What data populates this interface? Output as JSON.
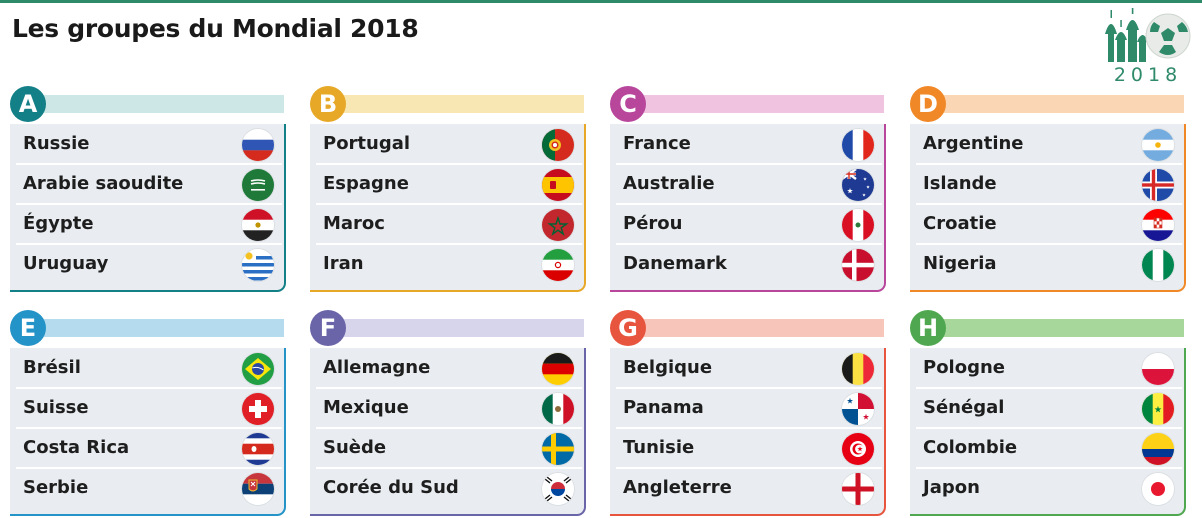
{
  "page": {
    "title": "Les groupes du Mondial 2018"
  },
  "logo": {
    "year": "2018",
    "icon": "world-cup-russia-logo",
    "color": "#2f8a6a"
  },
  "groups": [
    {
      "letter": "A",
      "color": "#137f86",
      "bar_color": "#cde6e6",
      "teams": [
        {
          "name": "Russie",
          "flag": "russia"
        },
        {
          "name": "Arabie saoudite",
          "flag": "saudi-arabia"
        },
        {
          "name": "Égypte",
          "flag": "egypt"
        },
        {
          "name": "Uruguay",
          "flag": "uruguay"
        }
      ]
    },
    {
      "letter": "B",
      "color": "#e8a827",
      "bar_color": "#f8e7b3",
      "teams": [
        {
          "name": "Portugal",
          "flag": "portugal"
        },
        {
          "name": "Espagne",
          "flag": "spain"
        },
        {
          "name": "Maroc",
          "flag": "morocco"
        },
        {
          "name": "Iran",
          "flag": "iran"
        }
      ]
    },
    {
      "letter": "C",
      "color": "#b8479c",
      "bar_color": "#f0c4e1",
      "teams": [
        {
          "name": "France",
          "flag": "france"
        },
        {
          "name": "Australie",
          "flag": "australia"
        },
        {
          "name": "Pérou",
          "flag": "peru"
        },
        {
          "name": "Danemark",
          "flag": "denmark"
        }
      ]
    },
    {
      "letter": "D",
      "color": "#f08828",
      "bar_color": "#fad6b4",
      "teams": [
        {
          "name": "Argentine",
          "flag": "argentina"
        },
        {
          "name": "Islande",
          "flag": "iceland"
        },
        {
          "name": "Croatie",
          "flag": "croatia"
        },
        {
          "name": "Nigeria",
          "flag": "nigeria"
        }
      ]
    },
    {
      "letter": "E",
      "color": "#2493c7",
      "bar_color": "#b5dcee",
      "teams": [
        {
          "name": "Brésil",
          "flag": "brazil"
        },
        {
          "name": "Suisse",
          "flag": "switzerland"
        },
        {
          "name": "Costa Rica",
          "flag": "costa-rica"
        },
        {
          "name": "Serbie",
          "flag": "serbia"
        }
      ]
    },
    {
      "letter": "F",
      "color": "#6a64a8",
      "bar_color": "#d6d5ec",
      "teams": [
        {
          "name": "Allemagne",
          "flag": "germany"
        },
        {
          "name": "Mexique",
          "flag": "mexico"
        },
        {
          "name": "Suède",
          "flag": "sweden"
        },
        {
          "name": "Corée du Sud",
          "flag": "south-korea"
        }
      ]
    },
    {
      "letter": "G",
      "color": "#e8553e",
      "bar_color": "#f7c5b9",
      "teams": [
        {
          "name": "Belgique",
          "flag": "belgium"
        },
        {
          "name": "Panama",
          "flag": "panama"
        },
        {
          "name": "Tunisie",
          "flag": "tunisia"
        },
        {
          "name": "Angleterre",
          "flag": "england"
        }
      ]
    },
    {
      "letter": "H",
      "color": "#4fa84f",
      "bar_color": "#a8d79b",
      "teams": [
        {
          "name": "Pologne",
          "flag": "poland"
        },
        {
          "name": "Sénégal",
          "flag": "senegal"
        },
        {
          "name": "Colombie",
          "flag": "colombia"
        },
        {
          "name": "Japon",
          "flag": "japan"
        }
      ]
    }
  ]
}
